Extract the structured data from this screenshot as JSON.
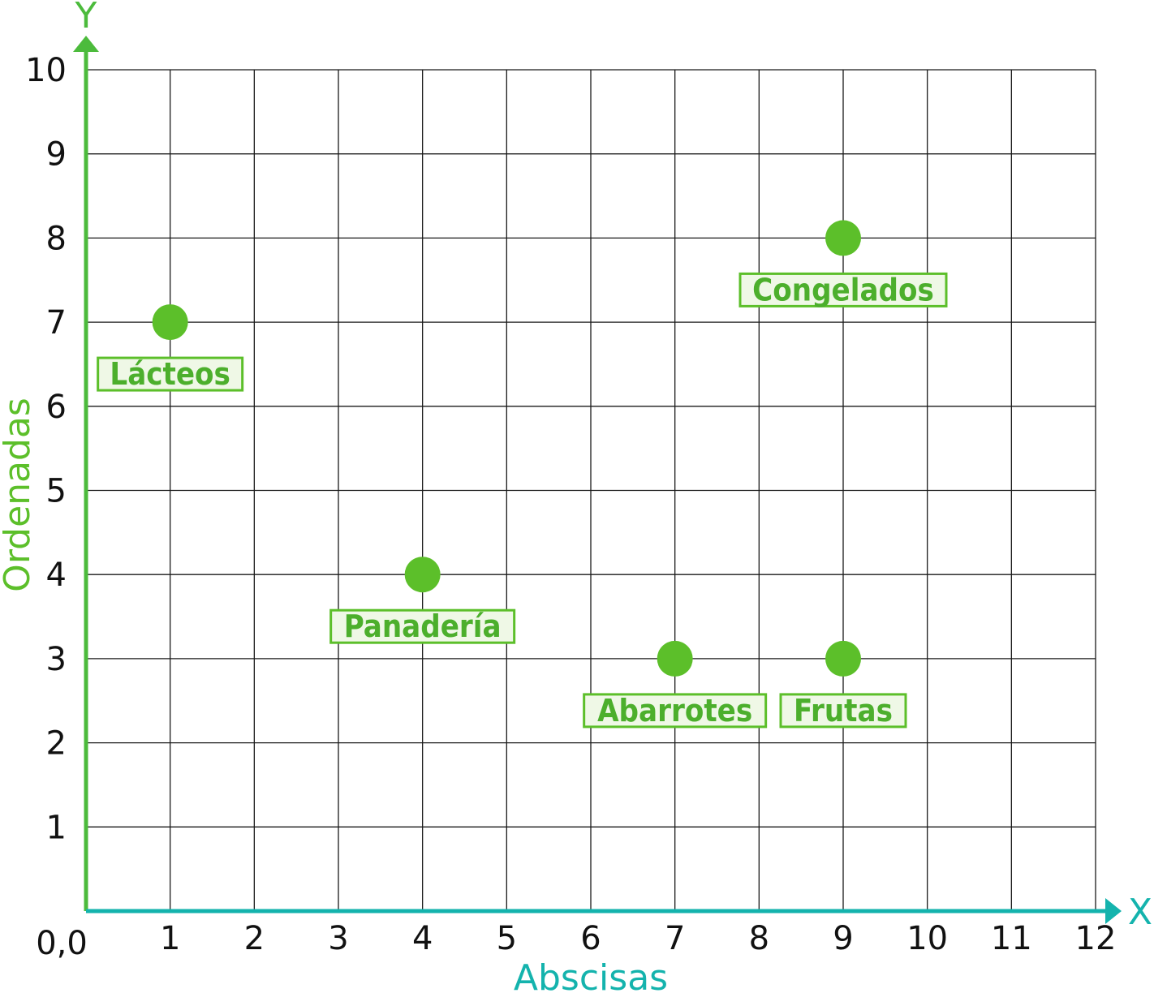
{
  "chart_data": {
    "type": "scatter",
    "title": "",
    "xlabel": "Abscisas",
    "ylabel": "Ordenadas",
    "x_axis_letter": "X",
    "y_axis_letter": "Y",
    "origin_label": "0,0",
    "xlim": [
      0,
      12
    ],
    "ylim": [
      0,
      10
    ],
    "x_ticks": [
      "1",
      "2",
      "3",
      "4",
      "5",
      "6",
      "7",
      "8",
      "9",
      "10",
      "11",
      "12"
    ],
    "y_ticks": [
      "1",
      "2",
      "3",
      "4",
      "5",
      "6",
      "7",
      "8",
      "9",
      "10"
    ],
    "grid": true,
    "points": [
      {
        "label": "Lácteos",
        "x": 1,
        "y": 7
      },
      {
        "label": "Congelados",
        "x": 9,
        "y": 8
      },
      {
        "label": "Panadería",
        "x": 4,
        "y": 4
      },
      {
        "label": "Abarrotes",
        "x": 7,
        "y": 3
      },
      {
        "label": "Frutas",
        "x": 9,
        "y": 3
      }
    ]
  },
  "colors": {
    "point": "#5cbf2a",
    "label_text": "#4caf2c",
    "label_border": "#5cbf2a",
    "label_fill": "#eff8e6",
    "y_axis": "#4cbb3c",
    "x_axis": "#14b3ad",
    "ylabel": "#5cbf2a",
    "xlabel": "#14b3ad",
    "grid": "#1a1a1a",
    "ticks": "#111111"
  }
}
